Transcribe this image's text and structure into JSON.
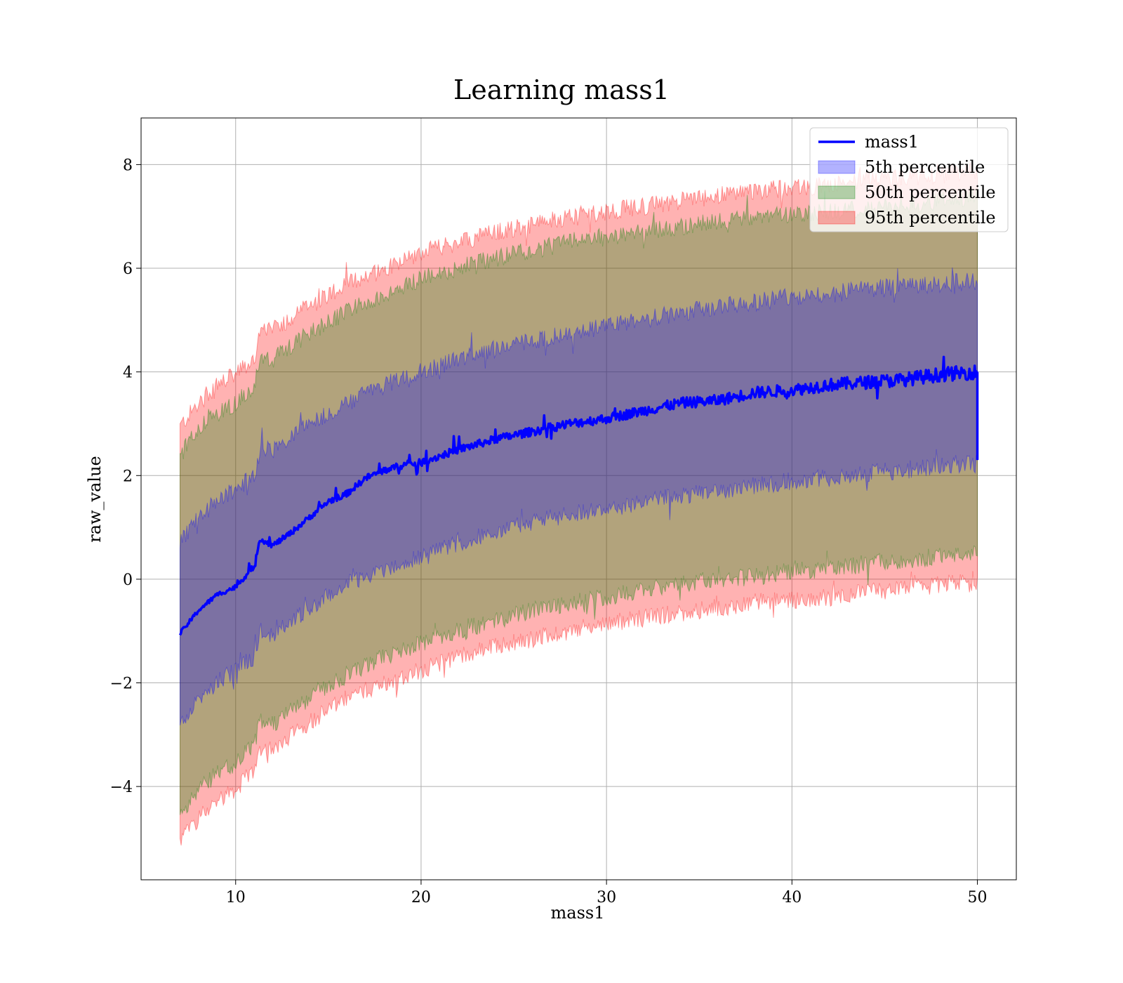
{
  "chart_data": {
    "type": "area",
    "title": "Learning mass1",
    "xlabel": "mass1",
    "ylabel": "raw_value",
    "xlim": [
      4.9,
      52.1
    ],
    "ylim": [
      -5.8,
      8.9
    ],
    "xticks": [
      10,
      20,
      30,
      40,
      50
    ],
    "xtick_labels": [
      "10",
      "20",
      "30",
      "40",
      "50"
    ],
    "yticks": [
      -4,
      -2,
      0,
      2,
      4,
      6,
      8
    ],
    "ytick_labels": [
      "−4",
      "−2",
      "0",
      "2",
      "4",
      "6",
      "8"
    ],
    "grid": true,
    "legend_position": "top-right",
    "colors": {
      "line": "#0000ff",
      "band_5": "#0000ff",
      "band_50": "#008000",
      "band_95": "#ff0000"
    },
    "line": {
      "name": "mass1",
      "x": [
        7.0,
        8.0,
        9.0,
        10.0,
        11.0,
        11.3,
        12.0,
        13.0,
        14.0,
        15.0,
        16.0,
        17.0,
        18.0,
        19.0,
        20.0,
        22.0,
        24.0,
        26.0,
        28.0,
        30.0,
        32.0,
        34.0,
        36.0,
        38.0,
        40.0,
        42.0,
        44.0,
        46.0,
        48.0,
        50.0,
        50.0
      ],
      "y": [
        -1.05,
        -0.6,
        -0.3,
        -0.15,
        0.25,
        0.78,
        0.65,
        0.9,
        1.2,
        1.5,
        1.65,
        1.95,
        2.1,
        2.2,
        2.25,
        2.5,
        2.7,
        2.85,
        3.0,
        3.1,
        3.25,
        3.4,
        3.45,
        3.6,
        3.65,
        3.75,
        3.8,
        3.85,
        3.95,
        4.0,
        2.3
      ]
    },
    "bands": [
      {
        "name": "95th percentile",
        "x": [
          7.0,
          8.0,
          9.0,
          10.0,
          11.0,
          11.3,
          12.0,
          14.0,
          16.0,
          18.0,
          20.0,
          22.0,
          24.0,
          26.0,
          28.0,
          30.0,
          32.0,
          34.0,
          36.0,
          38.0,
          40.0,
          42.0,
          44.0,
          46.0,
          48.0,
          50.0
        ],
        "upper": [
          2.95,
          3.4,
          3.75,
          3.95,
          4.25,
          4.75,
          4.8,
          5.3,
          5.7,
          6.0,
          6.3,
          6.5,
          6.7,
          6.85,
          7.0,
          7.1,
          7.2,
          7.3,
          7.4,
          7.5,
          7.55,
          7.6,
          7.7,
          7.75,
          7.8,
          7.9
        ],
        "lower": [
          -5.05,
          -4.6,
          -4.25,
          -4.05,
          -3.7,
          -3.25,
          -3.25,
          -2.75,
          -2.3,
          -2.0,
          -1.75,
          -1.5,
          -1.3,
          -1.15,
          -1.0,
          -0.85,
          -0.75,
          -0.65,
          -0.55,
          -0.45,
          -0.4,
          -0.35,
          -0.25,
          -0.2,
          -0.1,
          -0.05
        ]
      },
      {
        "name": "50th percentile",
        "x": [
          7.0,
          8.0,
          9.0,
          10.0,
          11.0,
          11.3,
          12.0,
          14.0,
          16.0,
          18.0,
          20.0,
          22.0,
          24.0,
          26.0,
          28.0,
          30.0,
          32.0,
          34.0,
          36.0,
          38.0,
          40.0,
          42.0,
          44.0,
          46.0,
          48.0,
          50.0
        ],
        "upper": [
          2.4,
          2.9,
          3.2,
          3.4,
          3.7,
          4.2,
          4.25,
          4.75,
          5.15,
          5.5,
          5.8,
          6.0,
          6.2,
          6.35,
          6.5,
          6.6,
          6.7,
          6.8,
          6.9,
          7.0,
          7.05,
          7.1,
          7.15,
          7.2,
          7.3,
          7.4
        ],
        "lower": [
          -4.55,
          -4.05,
          -3.75,
          -3.55,
          -3.2,
          -2.75,
          -2.8,
          -2.3,
          -1.85,
          -1.5,
          -1.25,
          -1.0,
          -0.8,
          -0.6,
          -0.45,
          -0.35,
          -0.2,
          -0.1,
          0.0,
          0.05,
          0.15,
          0.2,
          0.3,
          0.35,
          0.45,
          0.5
        ]
      },
      {
        "name": "5th percentile",
        "x": [
          7.0,
          8.0,
          9.0,
          10.0,
          11.0,
          11.3,
          12.0,
          14.0,
          16.0,
          18.0,
          20.0,
          22.0,
          24.0,
          26.0,
          28.0,
          30.0,
          32.0,
          34.0,
          36.0,
          38.0,
          40.0,
          42.0,
          44.0,
          46.0,
          48.0,
          50.0
        ],
        "upper": [
          0.7,
          1.2,
          1.5,
          1.75,
          2.0,
          2.5,
          2.5,
          3.0,
          3.4,
          3.75,
          4.0,
          4.25,
          4.45,
          4.6,
          4.75,
          4.9,
          5.0,
          5.15,
          5.25,
          5.35,
          5.45,
          5.5,
          5.6,
          5.65,
          5.7,
          5.75
        ],
        "lower": [
          -2.8,
          -2.35,
          -2.0,
          -1.75,
          -1.5,
          -1.0,
          -1.05,
          -0.55,
          -0.1,
          0.2,
          0.45,
          0.7,
          0.9,
          1.1,
          1.25,
          1.35,
          1.5,
          1.6,
          1.7,
          1.8,
          1.9,
          1.95,
          2.05,
          2.1,
          2.2,
          2.25
        ]
      }
    ],
    "legend": [
      {
        "label": "mass1",
        "kind": "line",
        "color": "#0000ff"
      },
      {
        "label": "5th percentile",
        "kind": "patch",
        "color": "#0000ff"
      },
      {
        "label": "50th percentile",
        "kind": "patch",
        "color": "#008000"
      },
      {
        "label": "95th percentile",
        "kind": "patch",
        "color": "#ff0000"
      }
    ]
  }
}
